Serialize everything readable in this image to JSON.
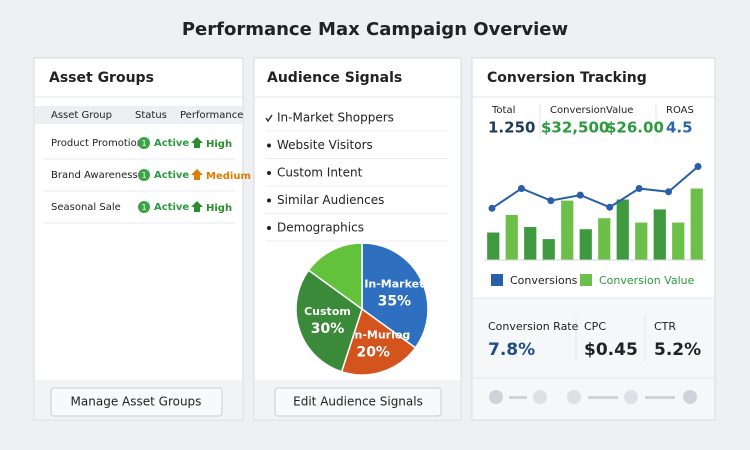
{
  "title": "Performance Max Campaign Overview",
  "asset_groups": {
    "title": "Asset Groups",
    "columns": [
      "Asset Group",
      "Status",
      "Performance"
    ],
    "rows": [
      {
        "name": "Product Promotion",
        "badge": "1",
        "status": "Active",
        "performance": "High",
        "performance_color": "#2e8b2e"
      },
      {
        "name": "Brand Awareness",
        "badge": "1",
        "status": "Active",
        "performance": "Medium",
        "performance_color": "#e07b00"
      },
      {
        "name": "Seasonal Sale",
        "badge": "1",
        "status": "Active",
        "performance": "High",
        "performance_color": "#2e8b2e"
      }
    ],
    "button": "Manage Asset Groups"
  },
  "audience_signals": {
    "title": "Audience Signals",
    "items": [
      "In-Market Shoppers",
      "Website Visitors",
      "Custom Intent",
      "Similar Audiences",
      "Demographics"
    ],
    "chart_data": {
      "type": "pie",
      "categories": [
        "In-Market",
        "Man-Murlog",
        "Custom",
        null
      ],
      "values": [
        35,
        20,
        30,
        15
      ],
      "value_labels": [
        "35%",
        "20%",
        "30%",
        null
      ],
      "colors": [
        "#2f6fc0",
        "#d4541e",
        "#3a8a3a",
        "#63c23c"
      ]
    },
    "button": "Edit Audience Signals"
  },
  "conversion_tracking": {
    "title": "Conversion Tracking",
    "metrics": [
      {
        "label": "Total",
        "value": "1.250",
        "color": "#1f3a5f"
      },
      {
        "label": "Conversion",
        "value": "$32,500",
        "color": "#2e9a3e"
      },
      {
        "label": "Value",
        "value": "$26.00",
        "color": "#2e9a3e"
      },
      {
        "label": "ROAS",
        "value": "4.5",
        "color": "#2a66b0"
      }
    ],
    "chart_data": {
      "type": "bar",
      "ylim": [
        0,
        100
      ],
      "series": [
        {
          "name": "Conversions",
          "type": "line",
          "color": "#2a5ea8",
          "values": [
            47,
            65,
            54,
            59,
            48,
            65,
            62,
            85
          ]
        },
        {
          "name": "Conversion Value",
          "type": "bar",
          "color": "#6cc04a",
          "colors": [
            "#3f9a3f",
            "#6cc04a",
            "#3f9a3f",
            "#3f9a3f",
            "#6cc04a",
            "#3f9a3f",
            "#6cc04a",
            "#3f9a3f",
            "#6cc04a",
            "#3f9a3f",
            "#6cc04a",
            "#6cc04a"
          ],
          "values": [
            25,
            41,
            30,
            19,
            54,
            28,
            38,
            55,
            34,
            46,
            34,
            65
          ]
        }
      ]
    },
    "kpis": [
      {
        "label": "Conversion Rate",
        "value": "7.8%",
        "color": "#1f4e8c"
      },
      {
        "label": "CPC",
        "value": "$0.45",
        "color": "#222222"
      },
      {
        "label": "CTR",
        "value": "5.2%",
        "color": "#222222"
      }
    ]
  }
}
